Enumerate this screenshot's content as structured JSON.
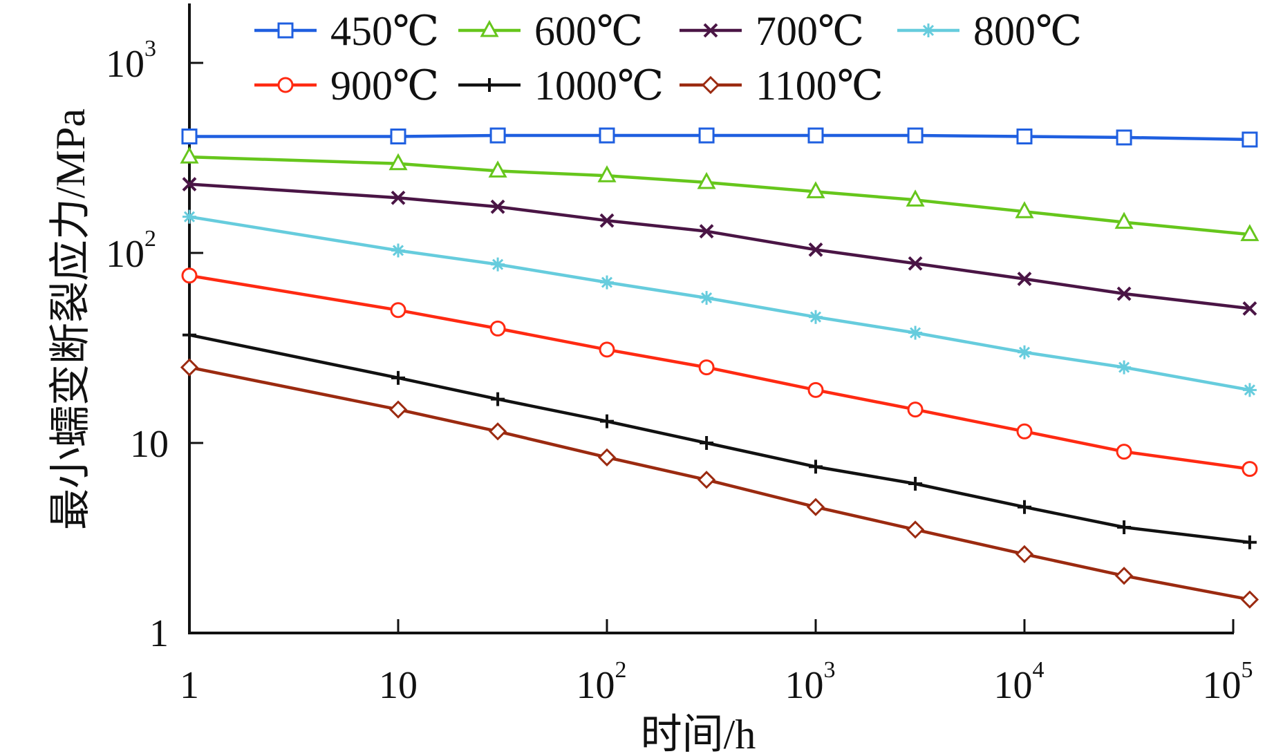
{
  "chart_data": {
    "type": "line",
    "title": "",
    "xlabel": "时间/h",
    "ylabel": "最小蠕变断裂应力/MPa",
    "x_scale": "log",
    "y_scale": "log",
    "xlim": [
      1,
      130000
    ],
    "ylim": [
      1,
      2000
    ],
    "grid": false,
    "legend_position": "top",
    "x_ticks": [
      {
        "value": 1,
        "base": "1",
        "exp": ""
      },
      {
        "value": 10,
        "base": "10",
        "exp": ""
      },
      {
        "value": 100,
        "base": "10",
        "exp": "2"
      },
      {
        "value": 1000,
        "base": "10",
        "exp": "3"
      },
      {
        "value": 10000,
        "base": "10",
        "exp": "4"
      },
      {
        "value": 100000,
        "base": "10",
        "exp": "5"
      }
    ],
    "y_ticks": [
      {
        "value": 1,
        "base": "1",
        "exp": ""
      },
      {
        "value": 10,
        "base": "10",
        "exp": ""
      },
      {
        "value": 100,
        "base": "10",
        "exp": "2"
      },
      {
        "value": 1000,
        "base": "10",
        "exp": "3"
      }
    ],
    "x": [
      1,
      10,
      30,
      100,
      300,
      1000,
      3000,
      10000,
      30000,
      120000
    ],
    "series": [
      {
        "name": "450℃",
        "color": "#1f5fe0",
        "marker": "square",
        "values": [
          410,
          410,
          415,
          415,
          415,
          415,
          415,
          410,
          405,
          395
        ]
      },
      {
        "name": "600℃",
        "color": "#66c61c",
        "marker": "triangle",
        "values": [
          320,
          295,
          270,
          255,
          235,
          210,
          190,
          165,
          145,
          125
        ]
      },
      {
        "name": "700℃",
        "color": "#4a1545",
        "marker": "x",
        "values": [
          230,
          195,
          175,
          148,
          130,
          104,
          88,
          73,
          61,
          51
        ]
      },
      {
        "name": "800℃",
        "color": "#66ccdd",
        "marker": "asterisk",
        "values": [
          155,
          103,
          87,
          70,
          58,
          46,
          38,
          30,
          25,
          19
        ]
      },
      {
        "name": "900℃",
        "color": "#ff2a12",
        "marker": "circle",
        "values": [
          76,
          50,
          40,
          31,
          25,
          19,
          15,
          11.5,
          9,
          7.3
        ]
      },
      {
        "name": "1000℃",
        "color": "#111111",
        "marker": "plus",
        "values": [
          37,
          22,
          17,
          13,
          10,
          7.5,
          6.1,
          4.6,
          3.6,
          3
        ]
      },
      {
        "name": "1100℃",
        "color": "#9b2a10",
        "marker": "diamond",
        "values": [
          25,
          15,
          11.5,
          8.4,
          6.4,
          4.6,
          3.5,
          2.6,
          2,
          1.5
        ]
      }
    ]
  }
}
